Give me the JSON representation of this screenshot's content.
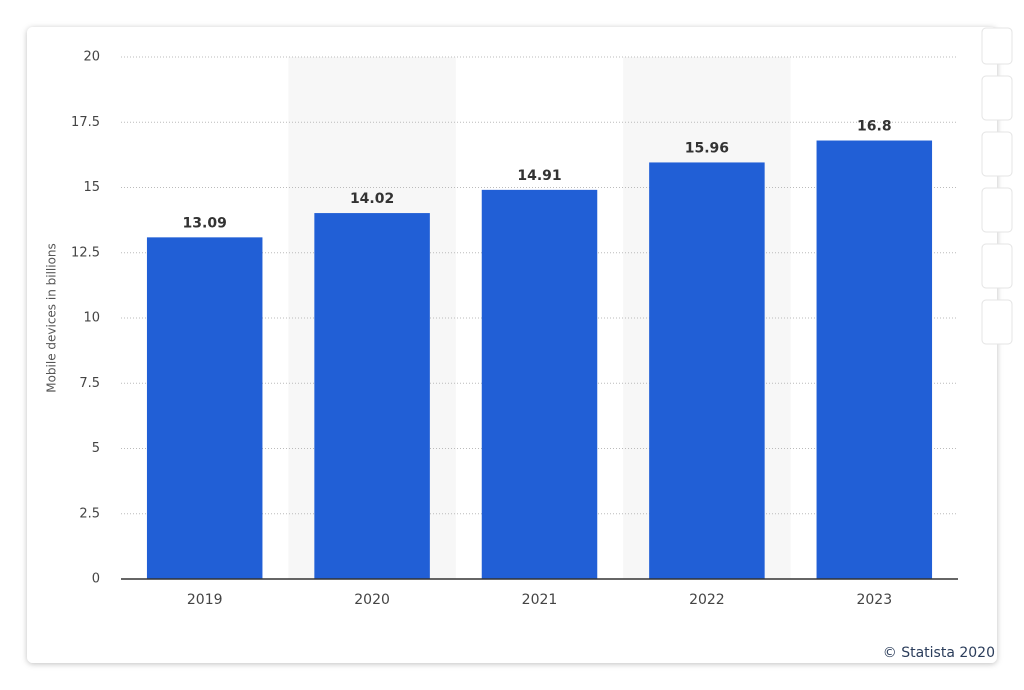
{
  "chart_data": {
    "type": "bar",
    "y_label": "Mobile devices in billions",
    "categories": [
      "2019",
      "2020",
      "2021",
      "2022",
      "2023"
    ],
    "values": [
      13.09,
      14.02,
      14.91,
      15.96,
      16.8
    ],
    "color": "#215fd6",
    "ylim": [
      0,
      20
    ],
    "yticks": [
      0,
      2.5,
      5,
      7.5,
      10,
      12.5,
      15,
      17.5,
      20
    ],
    "grid": true,
    "credit": "© Statista 2020"
  }
}
